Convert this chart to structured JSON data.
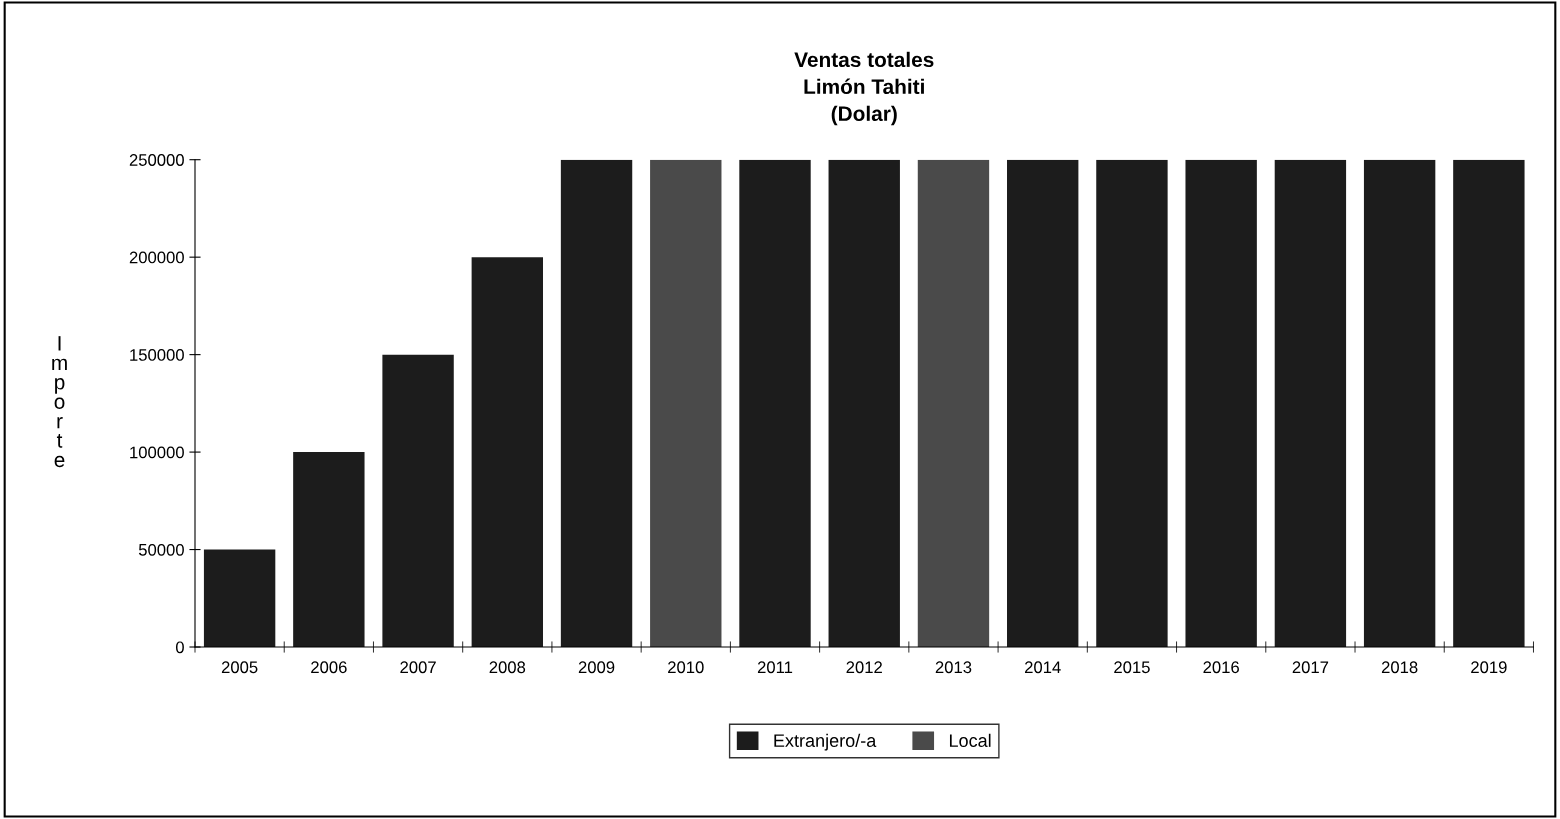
{
  "chart_data": {
    "type": "bar",
    "title": "Ventas totales\nLimón Tahiti\n(Dolar)",
    "ylabel": "Importe",
    "categories": [
      "2005",
      "2006",
      "2007",
      "2008",
      "2009",
      "2010",
      "2011",
      "2012",
      "2013",
      "2014",
      "2015",
      "2016",
      "2017",
      "2018",
      "2019"
    ],
    "series": [
      {
        "name": "Extranjero/-a",
        "color": "#1c1c1c",
        "values": [
          50000,
          100000,
          150000,
          200000,
          250000,
          null,
          250000,
          250000,
          null,
          250000,
          250000,
          250000,
          250000,
          250000,
          250000
        ]
      },
      {
        "name": "Local",
        "color": "#4a4a4a",
        "values": [
          null,
          null,
          null,
          null,
          null,
          250000,
          null,
          null,
          250000,
          null,
          null,
          null,
          null,
          null,
          null
        ]
      }
    ],
    "ylim": [
      0,
      250000
    ],
    "yticks": [
      0,
      50000,
      100000,
      150000,
      200000,
      250000
    ],
    "grid": false,
    "legend": "bottom"
  }
}
